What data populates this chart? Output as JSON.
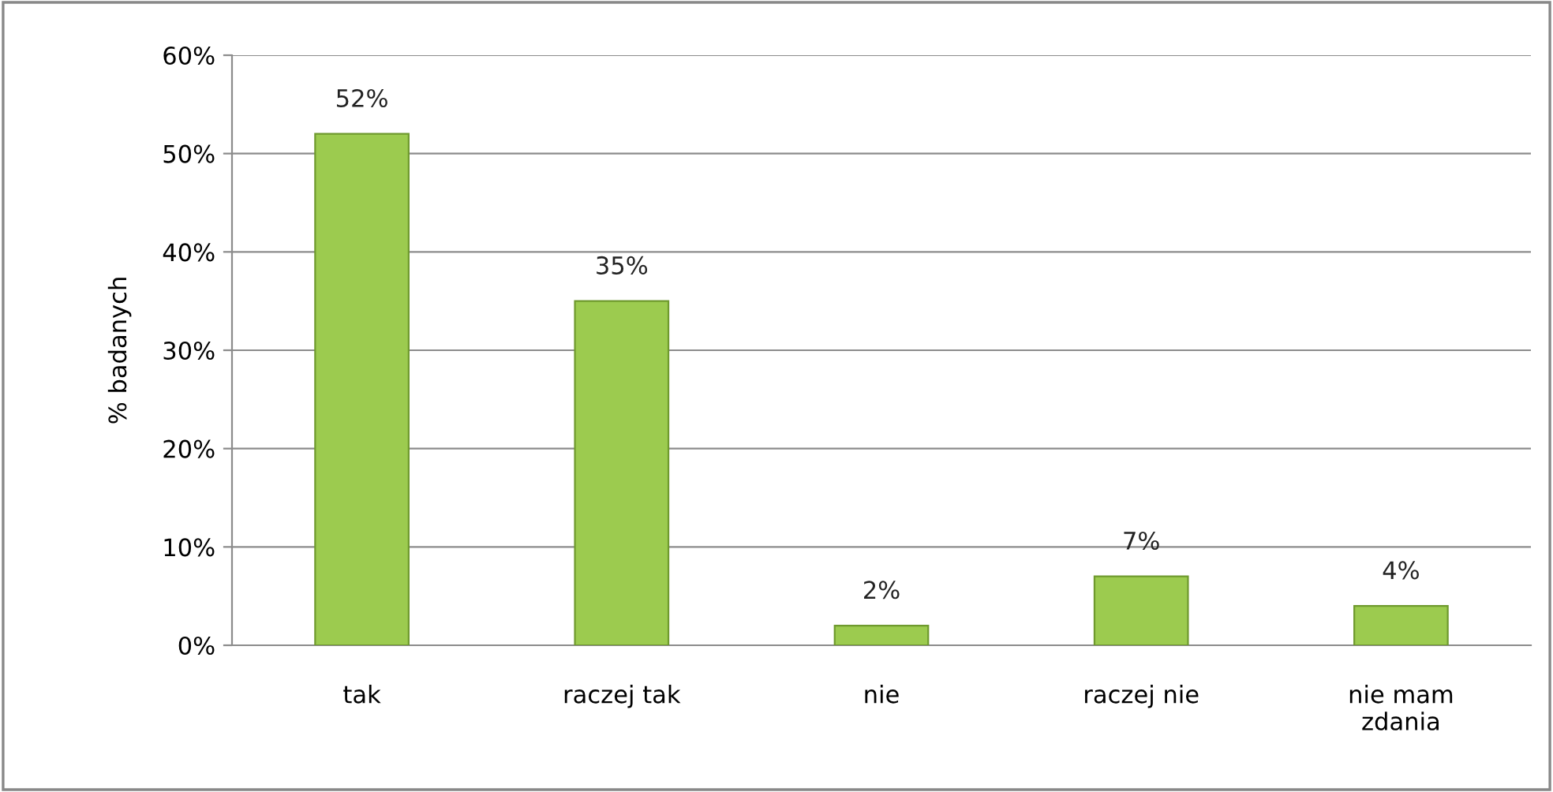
{
  "chart_data": {
    "type": "bar",
    "ylabel": "% badanych",
    "categories": [
      "tak",
      "raczej tak",
      "nie",
      "raczej nie",
      "nie mam\nzdania"
    ],
    "values": [
      52,
      35,
      2,
      7,
      4
    ],
    "value_labels": [
      "52%",
      "35%",
      "2%",
      "7%",
      "4%"
    ],
    "color": "#9ccb4f",
    "ylim": [
      0,
      60
    ],
    "yticks": [
      {
        "value": 0,
        "label": "0%"
      },
      {
        "value": 10,
        "label": "10%"
      },
      {
        "value": 20,
        "label": "20%"
      },
      {
        "value": 30,
        "label": "30%"
      },
      {
        "value": 40,
        "label": "40%"
      },
      {
        "value": 50,
        "label": "50%"
      },
      {
        "value": 60,
        "label": "60%"
      }
    ],
    "grid": "y"
  }
}
